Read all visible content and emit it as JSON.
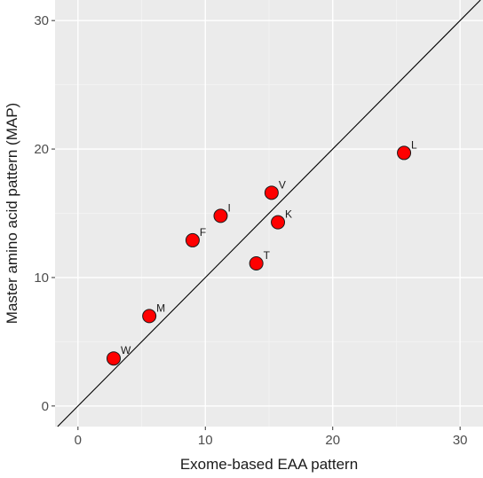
{
  "chart_data": {
    "type": "scatter",
    "title": "",
    "xlabel": "Exome-based EAA pattern",
    "ylabel": "Master amino acid pattern (MAP)",
    "xlim": [
      -1.8,
      31.8
    ],
    "ylim": [
      -1.6,
      31.6
    ],
    "x_ticks": [
      0,
      10,
      20,
      30
    ],
    "y_ticks": [
      0,
      10,
      20,
      30
    ],
    "x_tick_labels": [
      "0",
      "10",
      "20",
      "30"
    ],
    "y_tick_labels": [
      "0",
      "10",
      "20",
      "30"
    ],
    "grid": true,
    "reference_line": "y = x",
    "points": [
      {
        "label": "W",
        "x": 2.8,
        "y": 3.7
      },
      {
        "label": "M",
        "x": 5.6,
        "y": 7.0
      },
      {
        "label": "F",
        "x": 9.0,
        "y": 12.9
      },
      {
        "label": "I",
        "x": 11.2,
        "y": 14.8
      },
      {
        "label": "T",
        "x": 14.0,
        "y": 11.1
      },
      {
        "label": "V",
        "x": 15.2,
        "y": 16.6
      },
      {
        "label": "K",
        "x": 15.7,
        "y": 14.3
      },
      {
        "label": "L",
        "x": 25.6,
        "y": 19.7
      }
    ],
    "colors": {
      "panel_background": "#ebebeb",
      "grid_major": "#ffffff",
      "grid_minor": "#f4f4f4",
      "point_fill": "#ff0000",
      "point_stroke": "#1a1a1a",
      "line": "#000000"
    }
  }
}
